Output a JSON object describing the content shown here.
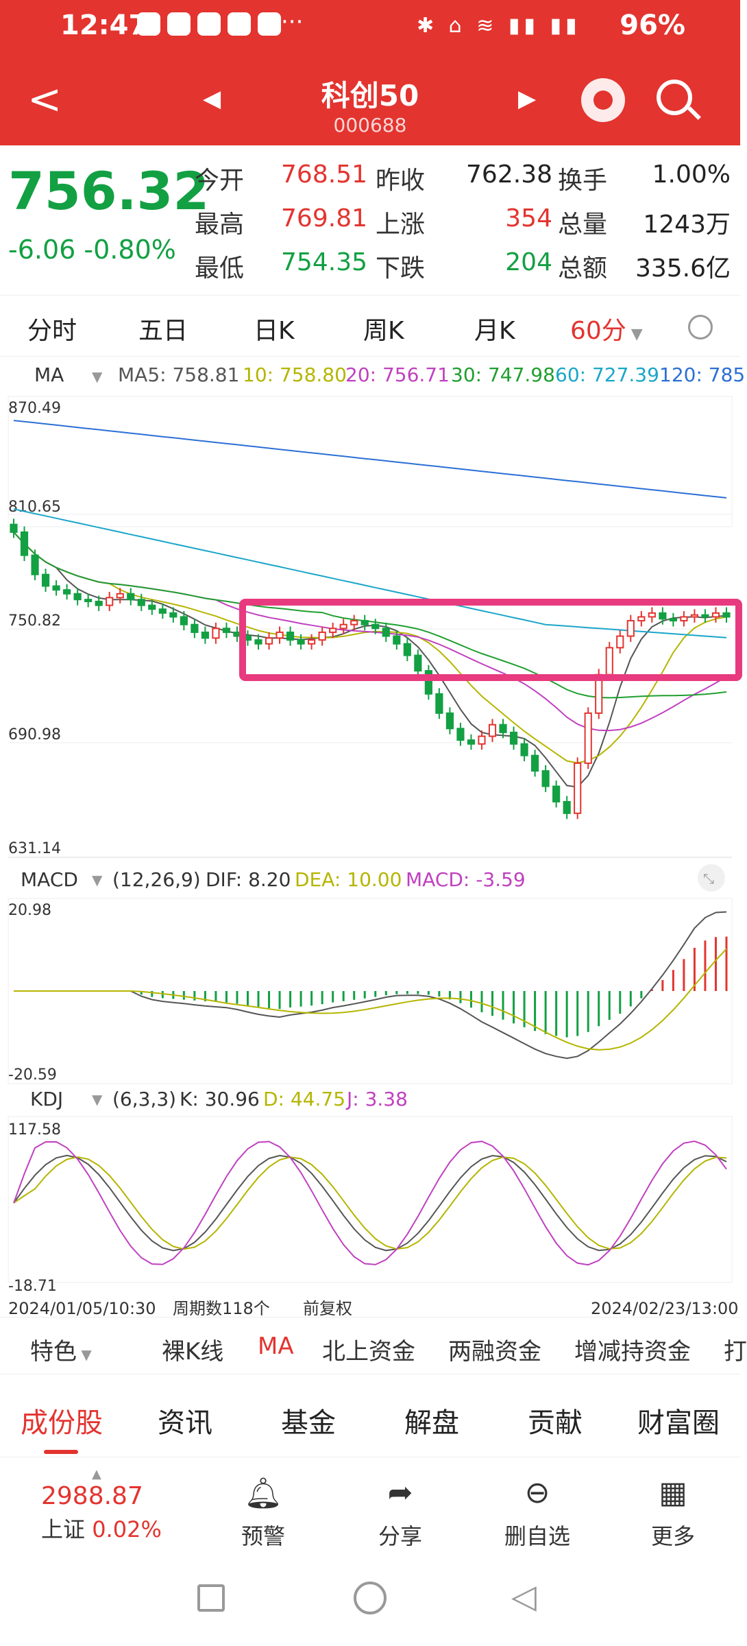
{
  "status_bar": {
    "time": "12:47",
    "dots": "···",
    "battery": "96%"
  },
  "header": {
    "title": "科创50",
    "code": "000688"
  },
  "quote": {
    "price": "756.32",
    "change": "-6.06",
    "change_pct": "-0.80%",
    "stats": [
      {
        "label": "今开",
        "value": "768.51"
      },
      {
        "label": "昨收",
        "value": "762.38"
      },
      {
        "label": "换手",
        "value": "1.00%"
      },
      {
        "label": "最高",
        "value": "769.81"
      },
      {
        "label": "上涨",
        "value": "354"
      },
      {
        "label": "总量",
        "value": "1243万"
      },
      {
        "label": "最低",
        "value": "754.35"
      },
      {
        "label": "下跌",
        "value": "204"
      },
      {
        "label": "总额",
        "value": "335.6亿"
      }
    ],
    "colors": {
      "up": "#e3342f",
      "down": "#12a043"
    }
  },
  "tabs": [
    "分时",
    "五日",
    "日K",
    "周K",
    "月K",
    "60分"
  ],
  "ma": {
    "label": "MA",
    "values": [
      "MA5: 758.81",
      "10: 758.80",
      "20: 756.71",
      "30: 747.98",
      "60: 727.39",
      "120: 785"
    ],
    "colors": [
      "#555555",
      "#b5b500",
      "#c040c0",
      "#1f9f2f",
      "#1aa6c8",
      "#2b6fd6"
    ],
    "y_ticks": [
      "870.49",
      "810.65",
      "750.82",
      "690.98",
      "631.14"
    ]
  },
  "macd": {
    "label": "MACD",
    "params": "(12,26,9)",
    "dif": "DIF: 8.20",
    "dea": "DEA: 10.00",
    "macd": "MACD: -3.59",
    "y_ticks": [
      "20.98",
      "-20.59"
    ]
  },
  "kdj": {
    "label": "KDJ",
    "params": "(6,3,3)",
    "k": "K: 30.96",
    "d": "D: 44.75",
    "j": "J: 3.38",
    "y_ticks": [
      "117.58",
      "-18.71"
    ]
  },
  "axis_footer": {
    "start": "2024/01/05/10:30",
    "periods": "周期数118个",
    "adjust": "前复权",
    "end": "2024/02/23/13:00"
  },
  "chart_data": {
    "type": "line",
    "title": "",
    "ylim": [
      631.14,
      870.49
    ],
    "y_ticks": [
      870.49,
      810.65,
      750.82,
      690.98,
      631.14
    ],
    "close": [
      800,
      788,
      778,
      772,
      770,
      768,
      765,
      764,
      762,
      766,
      768,
      765,
      762,
      760,
      758,
      756,
      752,
      748,
      745,
      750,
      748,
      746,
      744,
      742,
      745,
      748,
      744,
      742,
      744,
      748,
      750,
      752,
      754,
      752,
      750,
      746,
      742,
      736,
      728,
      716,
      706,
      698,
      692,
      690,
      694,
      700,
      696,
      690,
      684,
      676,
      668,
      660,
      654,
      680,
      706,
      726,
      740,
      746,
      754,
      756,
      758,
      755,
      754,
      756,
      757,
      756,
      758,
      756
    ],
    "series": [
      {
        "name": "MA5",
        "color": "#555555"
      },
      {
        "name": "10",
        "color": "#b5b500"
      },
      {
        "name": "20",
        "color": "#c040c0"
      },
      {
        "name": "30",
        "color": "#1f9f2f"
      },
      {
        "name": "60",
        "color": "#1aa6c8"
      },
      {
        "name": "120",
        "color": "#2b6fd6"
      }
    ]
  },
  "indicators": [
    "特色",
    "裸K线",
    "MA",
    "北上资金",
    "两融资金",
    "增减持资金",
    "打"
  ],
  "sections": [
    "成份股",
    "资讯",
    "基金",
    "解盘",
    "贡献",
    "财富圈"
  ],
  "bottom": {
    "index_value": "2988.87",
    "index_name": "上证",
    "index_change": "0.02%",
    "actions": [
      {
        "label": "预警",
        "icon": "bell-icon"
      },
      {
        "label": "分享",
        "icon": "share-icon"
      },
      {
        "label": "删自选",
        "icon": "minus-circle-icon"
      },
      {
        "label": "更多",
        "icon": "grid-icon"
      }
    ]
  }
}
